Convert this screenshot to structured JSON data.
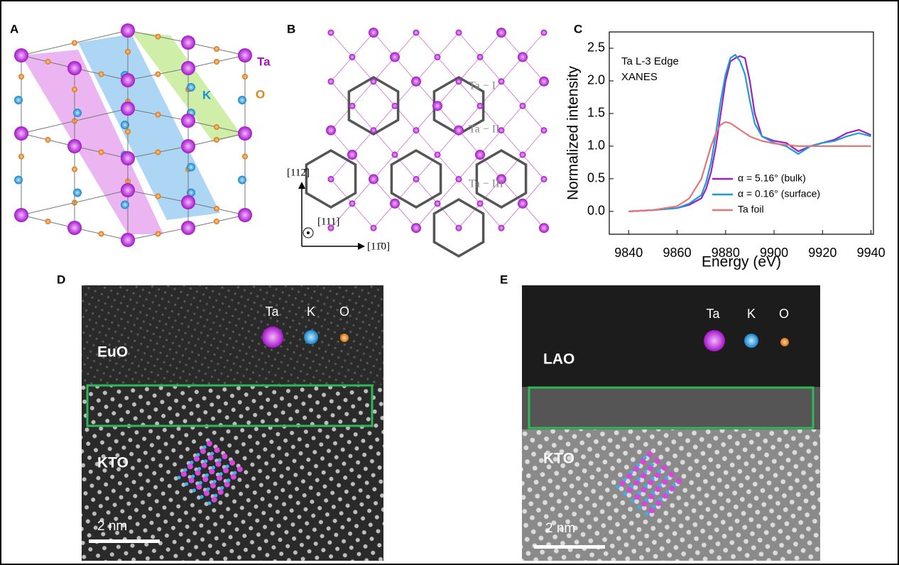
{
  "panels": {
    "a": {
      "label": "A",
      "atoms": [
        "Ta",
        "K",
        "O"
      ]
    },
    "b": {
      "label": "B",
      "sites": [
        "Ta − I",
        "Ta − II",
        "Ta − III"
      ],
      "directions": [
        "[112̄]",
        "[111]",
        "[11̄0]"
      ]
    },
    "d": {
      "label": "D",
      "film": "EuO",
      "substrate": "KTO",
      "atoms": [
        "Ta",
        "K",
        "O"
      ],
      "scale": "2 nm"
    },
    "e": {
      "label": "E",
      "film": "LAO",
      "substrate": "KTO",
      "atoms": [
        "Ta",
        "K",
        "O"
      ],
      "scale": "2 nm"
    }
  },
  "chart_data": {
    "type": "line",
    "label": "C",
    "annotation": [
      "Ta L-3 Edge",
      "XANES"
    ],
    "xlabel": "Energy (eV)",
    "ylabel": "Normalized intensity",
    "xlim": [
      9832,
      9941
    ],
    "xticks": [
      9840,
      9860,
      9880,
      9900,
      9920,
      9940
    ],
    "ylim": [
      -0.35,
      2.75
    ],
    "yticks": [
      {
        "value": 0,
        "label": "0.0"
      },
      0.5,
      {
        "value": 1,
        "label": "1.0"
      },
      1.5,
      {
        "value": 2,
        "label": "2.0"
      },
      2.5
    ],
    "x": [
      9840,
      9850,
      9860,
      9865,
      9870,
      9872,
      9874,
      9876,
      9878,
      9880,
      9882,
      9884,
      9886,
      9888,
      9890,
      9892,
      9895,
      9900,
      9905,
      9910,
      9915,
      9920,
      9925,
      9930,
      9935,
      9940
    ],
    "series": [
      {
        "name": "α = 5.16° (bulk)",
        "color": "#9b1fc2",
        "values": [
          0,
          0.02,
          0.05,
          0.1,
          0.2,
          0.35,
          0.6,
          1.0,
          1.5,
          2.0,
          2.3,
          2.35,
          2.38,
          2.35,
          2.0,
          1.5,
          1.15,
          1.08,
          1.05,
          0.92,
          1.0,
          1.05,
          1.1,
          1.2,
          1.25,
          1.17
        ]
      },
      {
        "name": "α = 0.16° (surface)",
        "color": "#1b9bd6",
        "values": [
          0,
          0.02,
          0.05,
          0.12,
          0.25,
          0.45,
          0.75,
          1.2,
          1.7,
          2.1,
          2.35,
          2.4,
          2.3,
          2.1,
          1.7,
          1.35,
          1.15,
          1.05,
          1.0,
          0.88,
          1.0,
          1.05,
          1.08,
          1.15,
          1.2,
          1.15
        ]
      },
      {
        "name": "Ta foil",
        "color": "#e87575",
        "values": [
          0,
          0.02,
          0.08,
          0.2,
          0.5,
          0.75,
          1.0,
          1.2,
          1.33,
          1.37,
          1.35,
          1.3,
          1.25,
          1.2,
          1.15,
          1.12,
          1.08,
          1.04,
          1.02,
          1.0,
          1.0,
          1.0,
          1.0,
          1.0,
          1.0,
          1.0
        ]
      }
    ]
  }
}
